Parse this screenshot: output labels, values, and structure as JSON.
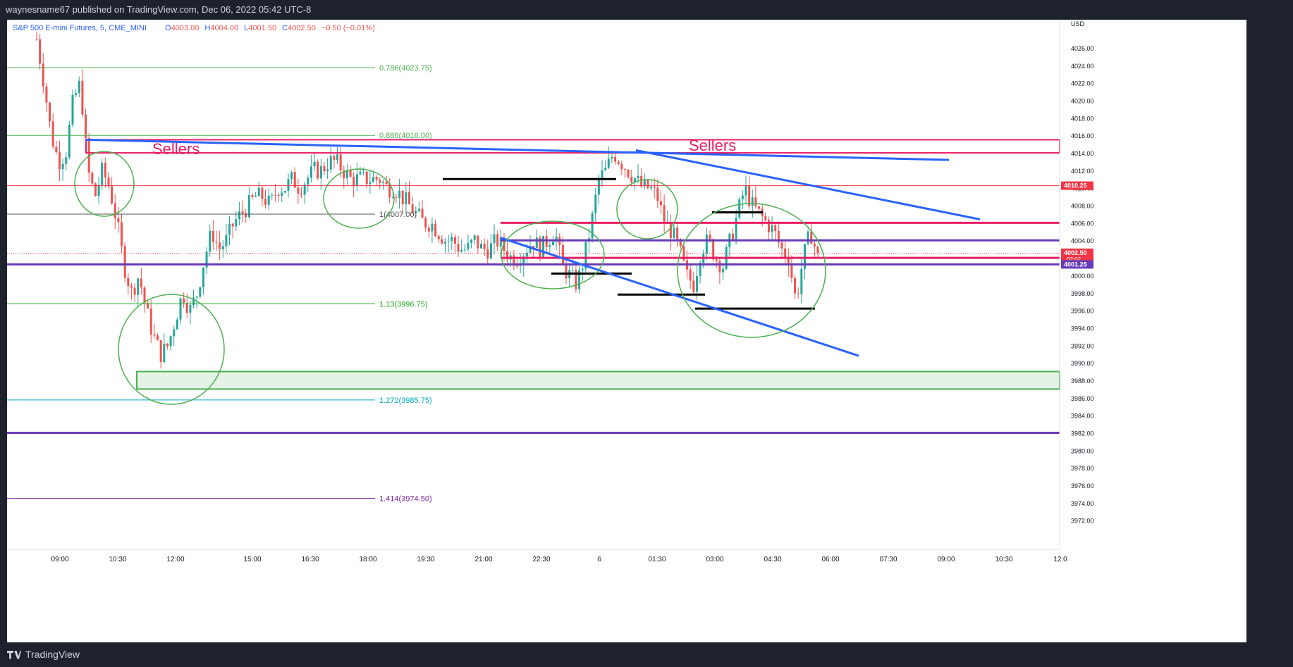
{
  "header": {
    "published": "waynesname67 published on TradingView.com, Dec 06, 2022 05:42 UTC-8"
  },
  "footer": {
    "brand": "TradingView",
    "brand_icon": "tradingview-logo-icon"
  },
  "legend": {
    "symbol": "S&P 500 E-mini Futures, 5, CME_MINI",
    "open_label": "O",
    "open": "4003.00",
    "high_label": "H",
    "high": "4004.00",
    "low_label": "L",
    "low": "4001.50",
    "close_label": "C",
    "close": "4002.50",
    "change": "−0.50 (−0.01%)"
  },
  "chart_data": {
    "type": "candlestick",
    "currency": "USD",
    "ylim": [
      3970.5,
      4028.5
    ],
    "y_ticks": [
      "4026.00",
      "4024.00",
      "4022.00",
      "4020.00",
      "4018.00",
      "4016.00",
      "4014.00",
      "4012.00",
      "4010.00",
      "4008.00",
      "4006.00",
      "4004.00",
      "4002.00",
      "4000.00",
      "3998.00",
      "3996.00",
      "3994.00",
      "3992.00",
      "3990.00",
      "3988.00",
      "3986.00",
      "3984.00",
      "3982.00",
      "3980.00",
      "3978.00",
      "3976.00",
      "3974.00",
      "3972.00"
    ],
    "x_ticks": [
      "09:00",
      "10:30",
      "12:00",
      "15:00",
      "16:30",
      "18:00",
      "19:30",
      "21:00",
      "22:30",
      "6",
      "01:30",
      "03:00",
      "04:30",
      "06:00",
      "07:30",
      "09:00",
      "10:30",
      "12:0"
    ],
    "close_path": [
      4027,
      4022,
      4016,
      4013,
      4014,
      4020,
      4022,
      4012,
      4009,
      4012,
      4010,
      4006,
      4001,
      3998,
      4000,
      3996,
      3993,
      3991,
      3992,
      3995,
      3998,
      3996,
      3998,
      4002,
      4005,
      4003,
      4004,
      4006,
      4007,
      4008,
      4009,
      4009,
      4008,
      4010,
      4010,
      4011,
      4010,
      4011,
      4012,
      4012,
      4013,
      4013,
      4012,
      4011,
      4011,
      4011,
      4011,
      4011,
      4010,
      4010,
      4009,
      4008,
      4007,
      4006,
      4006,
      4005,
      4004,
      4004,
      4003,
      4003,
      4004,
      4003,
      4003,
      4004,
      4003,
      4002,
      4002,
      4003,
      4004,
      4003,
      4004,
      4005,
      4001,
      4000,
      3999,
      4002,
      4006,
      4011,
      4012,
      4014,
      4013,
      4012,
      4011,
      4010,
      4010,
      4009,
      4006,
      4005,
      4003,
      4000,
      3999,
      4003,
      4004,
      4002,
      4001,
      4004,
      4007,
      4010,
      4008,
      4007,
      4006,
      4005,
      4003,
      4002,
      3997,
      4002,
      4005,
      4002
    ],
    "price_labels": [
      {
        "price": 4010.25,
        "text": "4010.25",
        "color": "#f23645"
      },
      {
        "price": 4002.5,
        "text": "4002.50",
        "subtext": "02:02",
        "color": "#f23645"
      },
      {
        "price": 4001.25,
        "text": "4001.25",
        "color": "#673ab7"
      }
    ],
    "fib_levels": [
      {
        "label": "0.786(4023.75)",
        "price": 4023.75,
        "color": "#4caf50"
      },
      {
        "label": "0.886(4016.00)",
        "price": 4016.0,
        "color": "#4caf50"
      },
      {
        "label": "1(4007.00)",
        "price": 4007.0,
        "color": "#555555"
      },
      {
        "label": "1.13(3996.75)",
        "price": 3996.75,
        "color": "#22ab22"
      },
      {
        "label": "1.272(3985.75)",
        "price": 3985.75,
        "color": "#00acc1"
      },
      {
        "label": "1.414(3974.50)",
        "price": 3974.5,
        "color": "#7b1fa2"
      }
    ],
    "annotations": [
      "Sellers",
      "Sellers"
    ],
    "colors": {
      "up": "#26a69a",
      "down": "#ef5350",
      "trend": "#2962ff",
      "support": "#673ab7",
      "resistance": "#e91e63",
      "zone": "#4caf50"
    }
  }
}
